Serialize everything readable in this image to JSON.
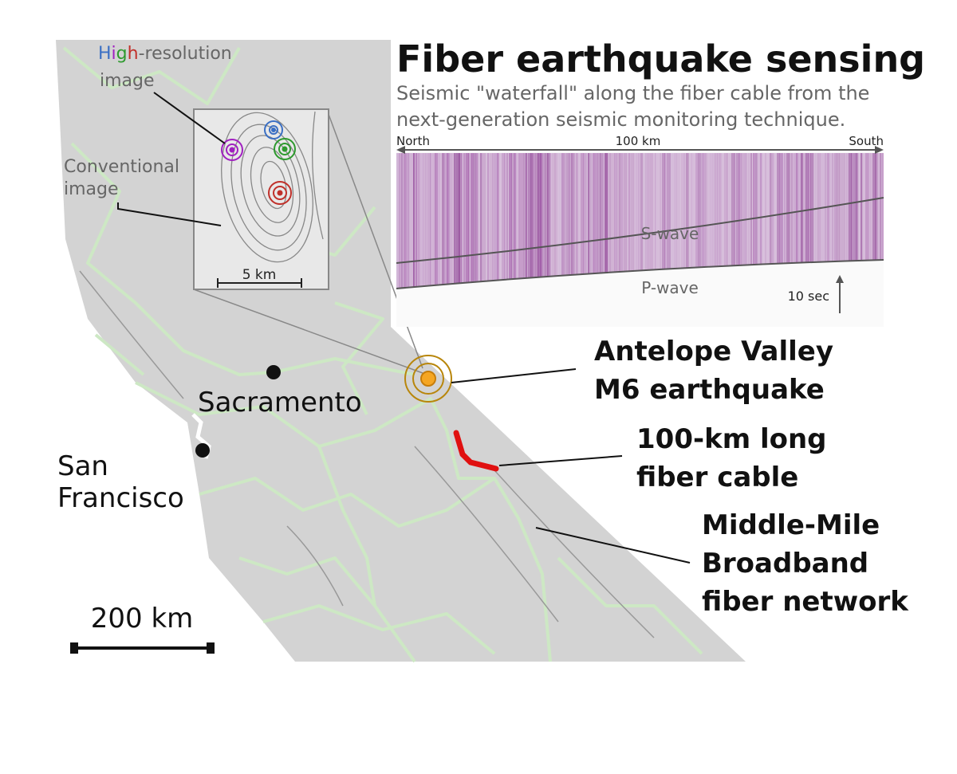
{
  "title": "Fiber earthquake sensing",
  "subtitle": [
    "Seismic \"waterfall\" along the fiber cable from the",
    "next-generation seismic monitoring technique."
  ],
  "waterfall": {
    "north": "North",
    "distance": "100 km",
    "south": "South",
    "s_wave": "S-wave",
    "p_wave": "P-wave",
    "time_scale": "10 sec"
  },
  "inset": {
    "high_resolution_label": {
      "parts": [
        {
          "text": "H",
          "color": "#3a6fc4"
        },
        {
          "text": "i",
          "color": "#a020c0"
        },
        {
          "text": "g",
          "color": "#2e9a2e"
        },
        {
          "text": "h",
          "color": "#c0302a"
        },
        {
          "text": "-resolution",
          "color": "#666666"
        }
      ],
      "line2": "image"
    },
    "conventional_label": [
      "Conventional",
      "image"
    ],
    "scale": "5 km"
  },
  "annotations": {
    "earthquake": [
      "Antelope Valley",
      "M6 earthquake"
    ],
    "cable": [
      "100-km long",
      "fiber cable"
    ],
    "network": [
      "Middle-Mile",
      "Broadband",
      "fiber network"
    ]
  },
  "cities": {
    "sacramento": "Sacramento",
    "san_francisco": [
      "San",
      "Francisco"
    ]
  },
  "scale": "200 km"
}
